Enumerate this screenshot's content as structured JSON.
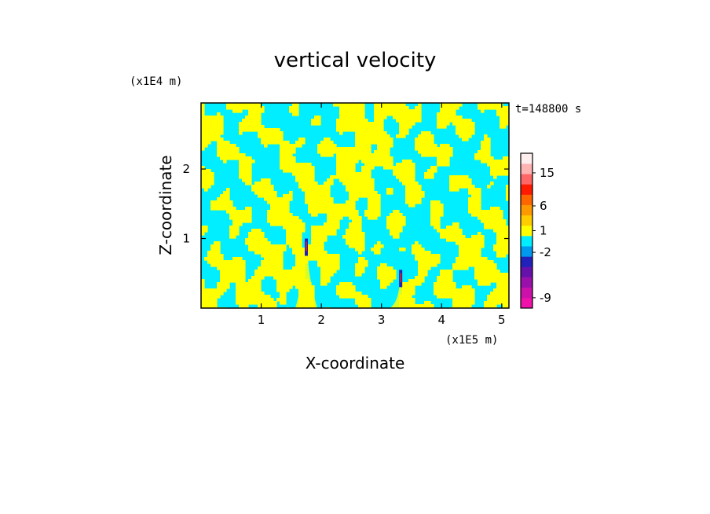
{
  "chart_data": {
    "type": "heatmap",
    "title": "vertical velocity",
    "xlabel": "X-coordinate",
    "ylabel": "Z-coordinate",
    "x_unit": "(x1E5 m)",
    "y_unit": "(x1E4 m)",
    "time_label": "t=148800 s",
    "xlim": [
      0,
      5.12
    ],
    "ylim": [
      0,
      2.95
    ],
    "x_ticks": [
      1,
      2,
      3,
      4,
      5
    ],
    "y_ticks": [
      1,
      2
    ],
    "colorbar": {
      "levels": [
        {
          "color": "#ee11aa"
        },
        {
          "color": "#cc11aa"
        },
        {
          "color": "#9911aa"
        },
        {
          "color": "#6611aa"
        },
        {
          "color": "#2222bb"
        },
        {
          "color": "#0099ee"
        },
        {
          "color": "#00eeff"
        },
        {
          "color": "#ffff00"
        },
        {
          "color": "#ffcc00"
        },
        {
          "color": "#ff9900"
        },
        {
          "color": "#ff6600"
        },
        {
          "color": "#ff1a00"
        },
        {
          "color": "#ff6666"
        },
        {
          "color": "#ffb3b3"
        },
        {
          "color": "#ffeeee"
        }
      ],
      "tick_labels": [
        {
          "label": "-9",
          "level": 1.0
        },
        {
          "label": "-2",
          "level": 5.4
        },
        {
          "label": "1",
          "level": 7.5
        },
        {
          "label": "6",
          "level": 9.9
        },
        {
          "label": "15",
          "level": 13.1
        }
      ]
    },
    "field_colors": {
      "negative": "#00eeff",
      "positive": "#ffff00"
    },
    "plumes": [
      {
        "x": 1.75,
        "z_top": 1.0
      },
      {
        "x": 3.32,
        "z_top": 0.55
      }
    ]
  }
}
